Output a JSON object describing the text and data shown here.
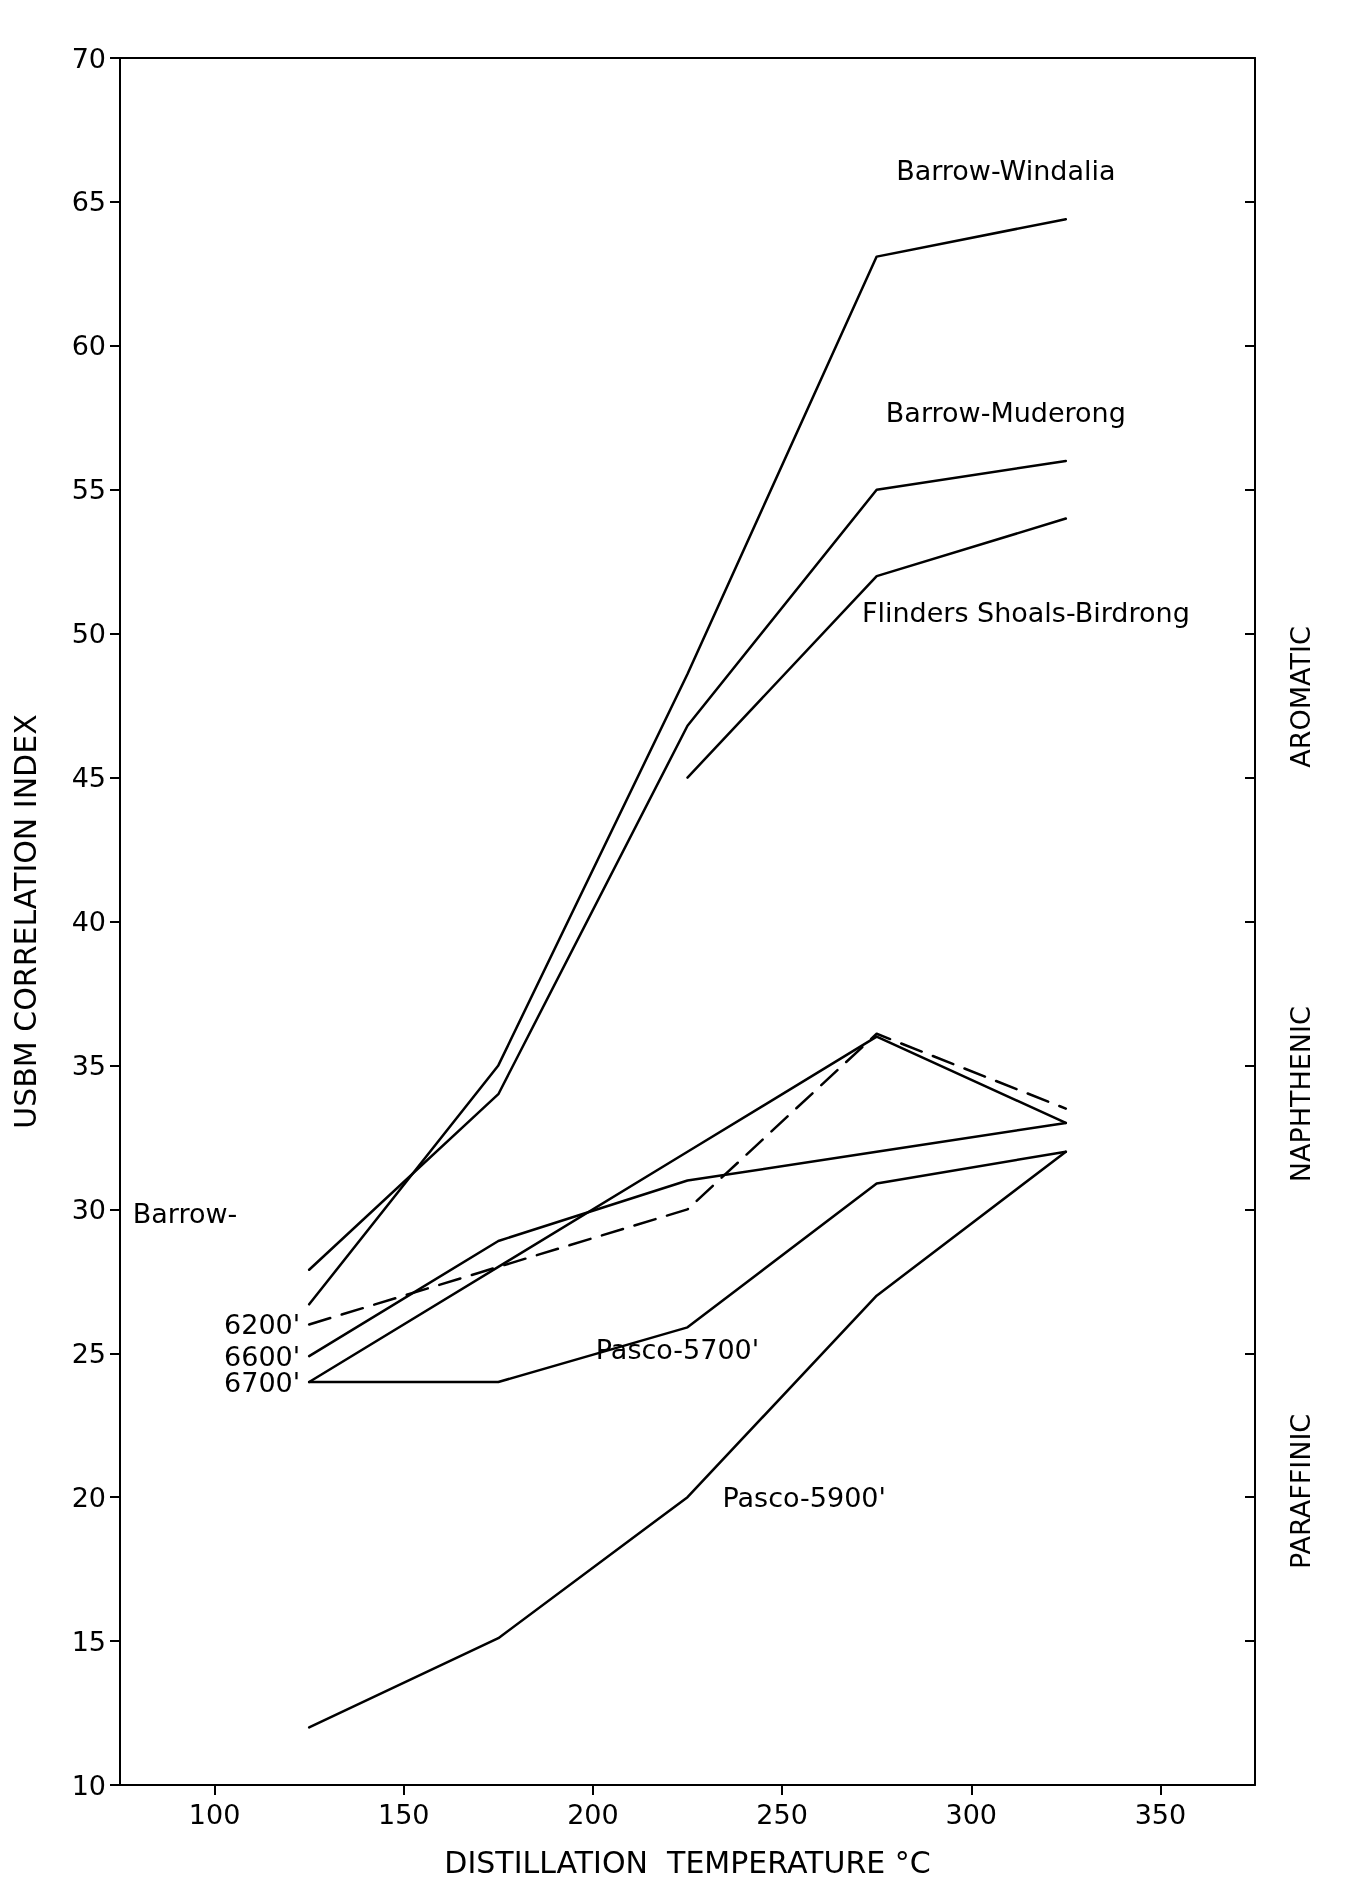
{
  "chart_data": {
    "type": "line",
    "xlabel": "DISTILLATION  TEMPERATURE °C",
    "ylabel": "USBM CORRELATION INDEX",
    "x": [
      125,
      175,
      225,
      275,
      325
    ],
    "xlim": [
      75,
      375
    ],
    "xticks": [
      100,
      150,
      200,
      250,
      300,
      350
    ],
    "ylim": [
      10,
      70
    ],
    "yticks": [
      10,
      15,
      20,
      25,
      30,
      35,
      40,
      45,
      50,
      55,
      60,
      65,
      70
    ],
    "marker": "none",
    "line_style": "solid",
    "series": [
      {
        "name": "Barrow-Windalia",
        "color": "#000000",
        "values": [
          26.7,
          35.0,
          48.6,
          63.1,
          64.4
        ]
      },
      {
        "name": "Barrow-Muderong",
        "color": "#000000",
        "values": [
          27.9,
          34.0,
          46.8,
          55.0,
          56.0
        ]
      },
      {
        "name": "Flinders Shoals-Birdrong",
        "color": "#000000",
        "values": [
          null,
          null,
          45.0,
          52.0,
          54.0
        ]
      },
      {
        "name": "6200'",
        "color": "#000000",
        "line_style": "dashed",
        "values": [
          26.0,
          28.0,
          30.0,
          36.1,
          33.5
        ]
      },
      {
        "name": "6600'",
        "color": "#000000",
        "values": [
          24.9,
          28.9,
          31.0,
          32.0,
          33.0
        ]
      },
      {
        "name": "6700'",
        "color": "#000000",
        "values": [
          24.0,
          28.0,
          32.0,
          36.0,
          33.0
        ]
      },
      {
        "name": "Pasco-5700'",
        "color": "#000000",
        "values": [
          24.0,
          24.0,
          25.9,
          30.9,
          32.0
        ]
      },
      {
        "name": "Pasco-5900'",
        "color": "#000000",
        "values": [
          12.0,
          15.1,
          20.0,
          27.0,
          32.0
        ]
      }
    ],
    "annotations": [
      "Barrow-",
      "AROMATIC",
      "NAPHTHENIC",
      "PARAFFINIC"
    ]
  }
}
